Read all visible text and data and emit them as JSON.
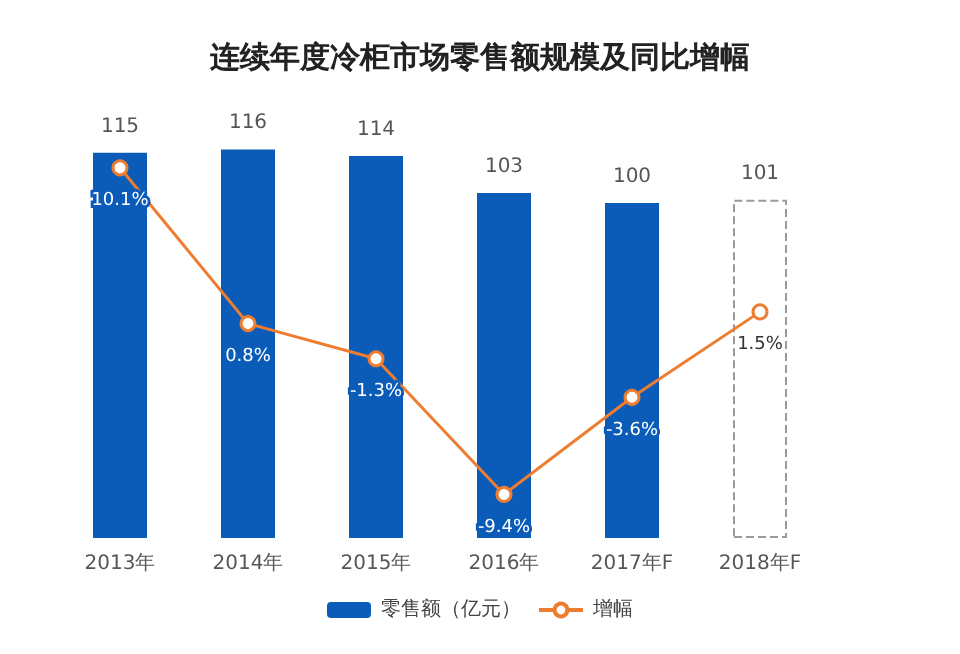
{
  "chart_data": {
    "type": "bar",
    "title": "连续年度冷柜市场零售额规模及同比增幅",
    "categories": [
      "2013年",
      "2014年",
      "2015年",
      "2016年",
      "2017年F",
      "2018年F"
    ],
    "series": [
      {
        "name": "零售额（亿元）",
        "values": [
          115,
          116,
          114,
          103,
          100,
          101
        ],
        "colors": [
          "#0a5cb8",
          "#0a5cb8",
          "#0a5cb8",
          "#0a5cb8",
          "#0a5cb8",
          "#ffffff"
        ]
      },
      {
        "name": "增幅",
        "type": "line",
        "axis": "y2",
        "color": "#ed7d31",
        "values": [
          10.1,
          0.8,
          -1.3,
          -9.4,
          -3.6,
          1.5
        ],
        "value_labels": [
          "10.1%",
          "0.8%",
          "-1.3%",
          "-9.4%",
          "-3.6%",
          "1.5%"
        ]
      }
    ],
    "data_labels": true,
    "marker": "circle",
    "legend": "bottom",
    "grid": false,
    "tick_labels": "x"
  }
}
